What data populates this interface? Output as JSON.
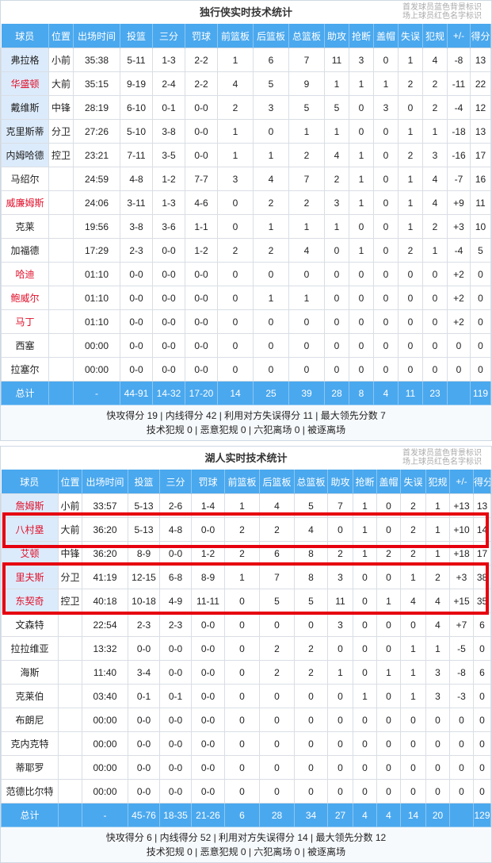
{
  "colors": {
    "header_bg": "#4aa8ee",
    "starter_bg": "#dcebfb",
    "oncourt_name": "#e0102a",
    "highlight_box": "#e6000f"
  },
  "legend": [
    "首发球员蓝色背景标识",
    "场上球员红色名字标识"
  ],
  "headers": [
    "球员",
    "位置",
    "出场时间",
    "投篮",
    "三分",
    "罚球",
    "前篮板",
    "后篮板",
    "总篮板",
    "助攻",
    "抢断",
    "盖帽",
    "失误",
    "犯规",
    "+/-",
    "得分"
  ],
  "teams": [
    {
      "title": "独行侠实时技术统计",
      "players": [
        {
          "name": "弗拉格",
          "pos": "小前",
          "starter": true,
          "oncourt": false,
          "stats": [
            "35:38",
            "5-11",
            "1-3",
            "2-2",
            "1",
            "6",
            "7",
            "11",
            "3",
            "0",
            "1",
            "4",
            "-8",
            "13"
          ]
        },
        {
          "name": "华盛顿",
          "pos": "大前",
          "starter": true,
          "oncourt": true,
          "stats": [
            "35:15",
            "9-19",
            "2-4",
            "2-2",
            "4",
            "5",
            "9",
            "1",
            "1",
            "1",
            "2",
            "2",
            "-11",
            "22"
          ]
        },
        {
          "name": "戴维斯",
          "pos": "中锋",
          "starter": true,
          "oncourt": false,
          "stats": [
            "28:19",
            "6-10",
            "0-1",
            "0-0",
            "2",
            "3",
            "5",
            "5",
            "0",
            "3",
            "0",
            "2",
            "-4",
            "12"
          ]
        },
        {
          "name": "克里斯蒂",
          "pos": "分卫",
          "starter": true,
          "oncourt": false,
          "stats": [
            "27:26",
            "5-10",
            "3-8",
            "0-0",
            "1",
            "0",
            "1",
            "1",
            "0",
            "0",
            "1",
            "1",
            "-18",
            "13"
          ]
        },
        {
          "name": "内姆哈德",
          "pos": "控卫",
          "starter": true,
          "oncourt": false,
          "stats": [
            "23:21",
            "7-11",
            "3-5",
            "0-0",
            "1",
            "1",
            "2",
            "4",
            "1",
            "0",
            "2",
            "3",
            "-16",
            "17"
          ]
        },
        {
          "name": "马绍尔",
          "pos": "",
          "starter": false,
          "oncourt": false,
          "stats": [
            "24:59",
            "4-8",
            "1-2",
            "7-7",
            "3",
            "4",
            "7",
            "2",
            "1",
            "0",
            "1",
            "4",
            "-7",
            "16"
          ]
        },
        {
          "name": "威廉姆斯",
          "pos": "",
          "starter": false,
          "oncourt": true,
          "stats": [
            "24:06",
            "3-11",
            "1-3",
            "4-6",
            "0",
            "2",
            "2",
            "3",
            "1",
            "0",
            "1",
            "4",
            "+9",
            "11"
          ]
        },
        {
          "name": "克莱",
          "pos": "",
          "starter": false,
          "oncourt": false,
          "stats": [
            "19:56",
            "3-8",
            "3-6",
            "1-1",
            "0",
            "1",
            "1",
            "1",
            "0",
            "0",
            "1",
            "2",
            "+3",
            "10"
          ]
        },
        {
          "name": "加福德",
          "pos": "",
          "starter": false,
          "oncourt": false,
          "stats": [
            "17:29",
            "2-3",
            "0-0",
            "1-2",
            "2",
            "2",
            "4",
            "0",
            "1",
            "0",
            "2",
            "1",
            "-4",
            "5"
          ]
        },
        {
          "name": "哈迪",
          "pos": "",
          "starter": false,
          "oncourt": true,
          "stats": [
            "01:10",
            "0-0",
            "0-0",
            "0-0",
            "0",
            "0",
            "0",
            "0",
            "0",
            "0",
            "0",
            "0",
            "+2",
            "0"
          ]
        },
        {
          "name": "鲍威尔",
          "pos": "",
          "starter": false,
          "oncourt": true,
          "stats": [
            "01:10",
            "0-0",
            "0-0",
            "0-0",
            "0",
            "1",
            "1",
            "0",
            "0",
            "0",
            "0",
            "0",
            "+2",
            "0"
          ]
        },
        {
          "name": "马丁",
          "pos": "",
          "starter": false,
          "oncourt": true,
          "stats": [
            "01:10",
            "0-0",
            "0-0",
            "0-0",
            "0",
            "0",
            "0",
            "0",
            "0",
            "0",
            "0",
            "0",
            "+2",
            "0"
          ]
        },
        {
          "name": "西塞",
          "pos": "",
          "starter": false,
          "oncourt": false,
          "stats": [
            "00:00",
            "0-0",
            "0-0",
            "0-0",
            "0",
            "0",
            "0",
            "0",
            "0",
            "0",
            "0",
            "0",
            "0",
            "0"
          ]
        },
        {
          "name": "拉塞尔",
          "pos": "",
          "starter": false,
          "oncourt": false,
          "stats": [
            "00:00",
            "0-0",
            "0-0",
            "0-0",
            "0",
            "0",
            "0",
            "0",
            "0",
            "0",
            "0",
            "0",
            "0",
            "0"
          ]
        }
      ],
      "total": [
        "总计",
        "",
        "-",
        "44-91",
        "14-32",
        "17-20",
        "14",
        "25",
        "39",
        "28",
        "8",
        "4",
        "11",
        "23",
        "",
        "119"
      ],
      "notes": [
        "快攻得分 19 | 内线得分 42 | 利用对方失误得分 11 | 最大领先分数 7",
        "技术犯规 0 | 恶意犯规 0 | 六犯离场 0 | 被逐离场"
      ]
    },
    {
      "title": "湖人实时技术统计",
      "players": [
        {
          "name": "詹姆斯",
          "pos": "小前",
          "starter": true,
          "oncourt": true,
          "stats": [
            "33:57",
            "5-13",
            "2-6",
            "1-4",
            "1",
            "4",
            "5",
            "7",
            "1",
            "0",
            "2",
            "1",
            "+13",
            "13"
          ]
        },
        {
          "name": "八村塁",
          "pos": "大前",
          "starter": true,
          "oncourt": true,
          "stats": [
            "36:20",
            "5-13",
            "4-8",
            "0-0",
            "2",
            "2",
            "4",
            "0",
            "1",
            "0",
            "2",
            "1",
            "+10",
            "14"
          ]
        },
        {
          "name": "艾顿",
          "pos": "中锋",
          "starter": true,
          "oncourt": true,
          "stats": [
            "36:20",
            "8-9",
            "0-0",
            "1-2",
            "2",
            "6",
            "8",
            "2",
            "1",
            "2",
            "2",
            "1",
            "+18",
            "17"
          ]
        },
        {
          "name": "里夫斯",
          "pos": "分卫",
          "starter": true,
          "oncourt": true,
          "stats": [
            "41:19",
            "12-15",
            "6-8",
            "8-9",
            "1",
            "7",
            "8",
            "3",
            "0",
            "0",
            "1",
            "2",
            "+3",
            "38"
          ]
        },
        {
          "name": "东契奇",
          "pos": "控卫",
          "starter": true,
          "oncourt": true,
          "stats": [
            "40:18",
            "10-18",
            "4-9",
            "11-11",
            "0",
            "5",
            "5",
            "11",
            "0",
            "1",
            "4",
            "4",
            "+15",
            "35"
          ]
        },
        {
          "name": "文森特",
          "pos": "",
          "starter": false,
          "oncourt": false,
          "stats": [
            "22:54",
            "2-3",
            "2-3",
            "0-0",
            "0",
            "0",
            "0",
            "3",
            "0",
            "0",
            "0",
            "4",
            "+7",
            "6"
          ]
        },
        {
          "name": "拉拉维亚",
          "pos": "",
          "starter": false,
          "oncourt": false,
          "stats": [
            "13:32",
            "0-0",
            "0-0",
            "0-0",
            "0",
            "2",
            "2",
            "0",
            "0",
            "0",
            "1",
            "1",
            "-5",
            "0"
          ]
        },
        {
          "name": "海斯",
          "pos": "",
          "starter": false,
          "oncourt": false,
          "stats": [
            "11:40",
            "3-4",
            "0-0",
            "0-0",
            "0",
            "2",
            "2",
            "1",
            "0",
            "1",
            "1",
            "3",
            "-8",
            "6"
          ]
        },
        {
          "name": "克莱伯",
          "pos": "",
          "starter": false,
          "oncourt": false,
          "stats": [
            "03:40",
            "0-1",
            "0-1",
            "0-0",
            "0",
            "0",
            "0",
            "0",
            "1",
            "0",
            "1",
            "3",
            "-3",
            "0"
          ]
        },
        {
          "name": "布朗尼",
          "pos": "",
          "starter": false,
          "oncourt": false,
          "stats": [
            "00:00",
            "0-0",
            "0-0",
            "0-0",
            "0",
            "0",
            "0",
            "0",
            "0",
            "0",
            "0",
            "0",
            "0",
            "0"
          ]
        },
        {
          "name": "克内克特",
          "pos": "",
          "starter": false,
          "oncourt": false,
          "stats": [
            "00:00",
            "0-0",
            "0-0",
            "0-0",
            "0",
            "0",
            "0",
            "0",
            "0",
            "0",
            "0",
            "0",
            "0",
            "0"
          ]
        },
        {
          "name": "蒂耶罗",
          "pos": "",
          "starter": false,
          "oncourt": false,
          "stats": [
            "00:00",
            "0-0",
            "0-0",
            "0-0",
            "0",
            "0",
            "0",
            "0",
            "0",
            "0",
            "0",
            "0",
            "0",
            "0"
          ]
        },
        {
          "name": "范德比尔特",
          "pos": "",
          "starter": false,
          "oncourt": false,
          "stats": [
            "00:00",
            "0-0",
            "0-0",
            "0-0",
            "0",
            "0",
            "0",
            "0",
            "0",
            "0",
            "0",
            "0",
            "0",
            "0"
          ]
        }
      ],
      "total": [
        "总计",
        "",
        "-",
        "45-76",
        "18-35",
        "21-26",
        "6",
        "28",
        "34",
        "27",
        "4",
        "4",
        "14",
        "20",
        "",
        "129"
      ],
      "notes": [
        "快攻得分 6 | 内线得分 52 | 利用对方失误得分 14 | 最大领先分数 12",
        "技术犯规 0 | 恶意犯规 0 | 六犯离场 0 | 被逐离场"
      ]
    }
  ]
}
